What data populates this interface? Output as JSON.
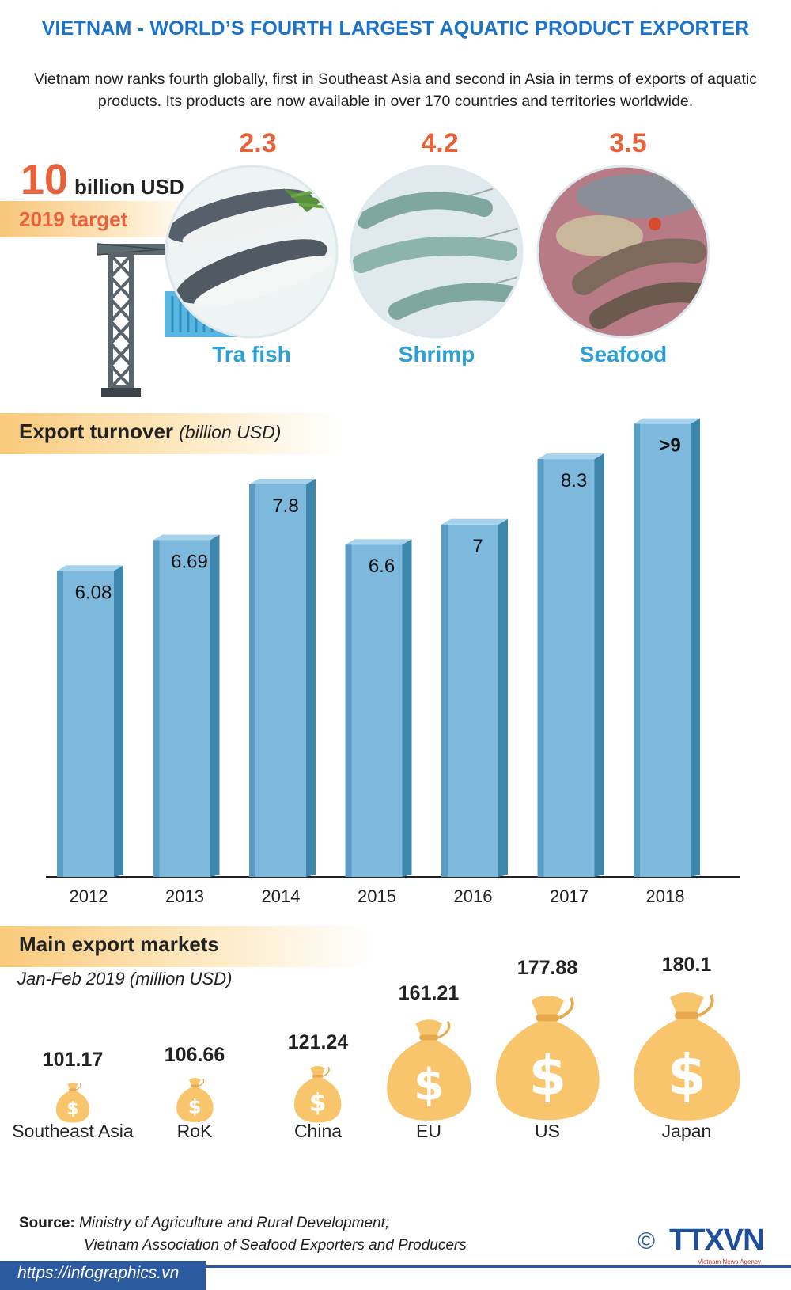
{
  "title": "VIETNAM - WORLD’S FOURTH LARGEST AQUATIC PRODUCT EXPORTER",
  "intro": "Vietnam now ranks fourth globally, first in Southeast Asia and second in Asia in terms of exports of aquatic products. Its products are now available in over 170 countries and territories worldwide.",
  "target": {
    "value": "10",
    "unit": "billion USD",
    "label": "2019 target"
  },
  "categories": [
    {
      "value": "2.3",
      "label": "Tra fish"
    },
    {
      "value": "4.2",
      "label": "Shrimp"
    },
    {
      "value": "3.5",
      "label": "Seafood"
    }
  ],
  "colors": {
    "title": "#1a73c9",
    "bar_front": "#7db8dd",
    "bar_side": "#3f86ad",
    "bar_top": "#a7d2ec",
    "accent_orange": "#e8613a",
    "bag": "#f8c56c",
    "category_label": "#2a9fd8"
  },
  "chart_data": [
    {
      "type": "bar",
      "title": "Export turnover",
      "unit": "(billion USD)",
      "categories": [
        "2012",
        "2013",
        "2014",
        "2015",
        "2016",
        "2017",
        "2018"
      ],
      "values": [
        6.08,
        6.69,
        7.8,
        6.6,
        7,
        8.3,
        9
      ],
      "value_labels": [
        "6.08",
        "6.69",
        "7.8",
        "6.6",
        "7",
        "8.3",
        ">9"
      ],
      "ylim": [
        0,
        9.5
      ],
      "grid": false
    },
    {
      "type": "bar",
      "title": "Main export markets",
      "subtitle": "Jan-Feb 2019 (million USD)",
      "categories": [
        "Southeast Asia",
        "RoK",
        "China",
        "EU",
        "US",
        "Japan"
      ],
      "values": [
        101.17,
        106.66,
        121.24,
        161.21,
        177.88,
        180.1
      ],
      "value_labels": [
        "101.17",
        "106.66",
        "121.24",
        "161.21",
        "177.88",
        "180.1"
      ]
    }
  ],
  "source": {
    "label": "Source:",
    "line1": "Ministry of Agriculture and Rural Development;",
    "line2": "Vietnam Association of Seafood  Exporters and Producers"
  },
  "url": "https://infographics.vn",
  "copyright": "©",
  "logo_text": "TTXVN",
  "logo_sub": "Vietnam News Agency"
}
